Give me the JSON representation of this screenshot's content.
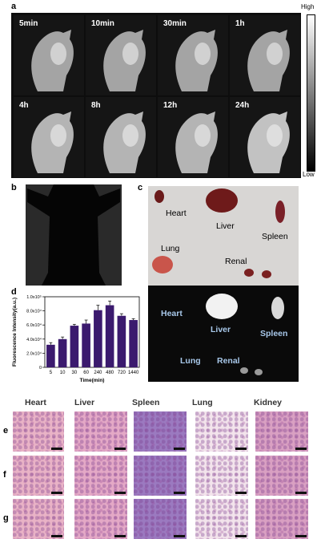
{
  "panels": {
    "a": "a",
    "b": "b",
    "c": "c",
    "d": "d",
    "e": "e",
    "f": "f",
    "g": "g"
  },
  "time_labels": [
    "5min",
    "10min",
    "30min",
    "1h",
    "4h",
    "8h",
    "12h",
    "24h"
  ],
  "scale": {
    "high": "High",
    "low": "Low"
  },
  "organs_top": {
    "heart": "Heart",
    "liver": "Liver",
    "spleen": "Spleen",
    "lung": "Lung",
    "renal": "Renal"
  },
  "organs_bottom": {
    "heart": "Heart",
    "liver": "Liver",
    "spleen": "Spleen",
    "lung": "Lung",
    "renal": "Renal"
  },
  "histo_columns": [
    "Heart",
    "Liver",
    "Spleen",
    "Lung",
    "Kidney"
  ],
  "chart_data": {
    "type": "bar",
    "categories": [
      "5",
      "10",
      "30",
      "60",
      "240",
      "480",
      "720",
      "1440"
    ],
    "values": [
      32000,
      40000,
      59000,
      62000,
      81000,
      88000,
      73000,
      67000
    ],
    "errors": [
      3000,
      3000,
      2000,
      5000,
      7000,
      6000,
      3000,
      2000
    ],
    "xlabel": "Time(min)",
    "ylabel": "Fluorescence Intensity(a.u.)",
    "ylim": [
      0,
      100000
    ],
    "yticks": [
      "0",
      "2.0x10⁴",
      "4.0x10⁴",
      "6.0x10⁴",
      "8.0x10⁴",
      "1.0x10⁵"
    ],
    "bar_color": "#3b1a6e"
  },
  "colors": {
    "he_pink": "#e7a9c7",
    "spleen": "#8a6bb8",
    "lung_bg": "#f5e8ef"
  }
}
